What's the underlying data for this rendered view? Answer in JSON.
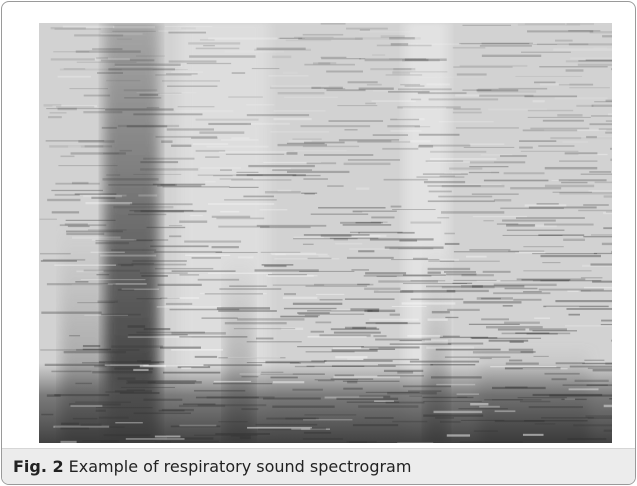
{
  "figure": {
    "label": "Fig. 2",
    "caption": "Example of respiratory sound spectrogram"
  }
}
